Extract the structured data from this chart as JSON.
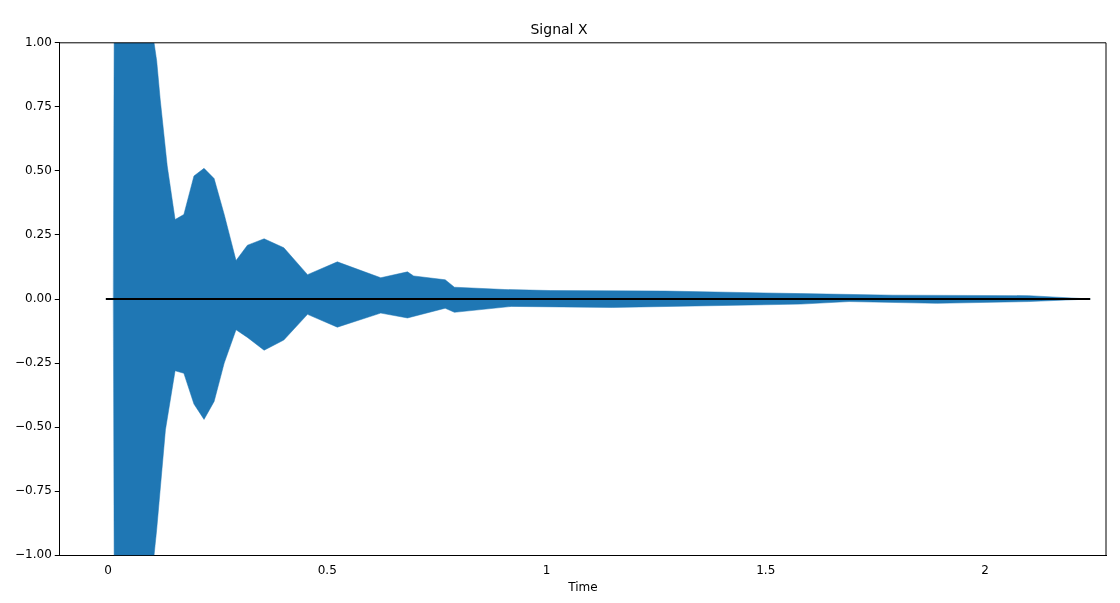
{
  "chart_data": {
    "type": "area",
    "title": "Signal X",
    "xlabel": "Time",
    "xlim": [
      -0.11,
      2.276
    ],
    "xticks": [
      0,
      0.5,
      1,
      1.5,
      2
    ],
    "ylim": [
      -1,
      1
    ],
    "yticks": [
      {
        "value": -1,
        "label": "−1.00"
      },
      {
        "value": -0.75,
        "label": "−0.75"
      },
      {
        "value": -0.5,
        "label": "−0.50"
      },
      {
        "value": -0.25,
        "label": "−0.25"
      },
      {
        "value": 0,
        "label": "0.00"
      },
      {
        "value": 0.25,
        "label": "0.25"
      },
      {
        "value": 0.5,
        "label": "0.50"
      },
      {
        "value": 0.75,
        "label": "0.75"
      },
      {
        "value": 1,
        "label": "1.00"
      }
    ],
    "grid": false,
    "legend": false,
    "series": [
      {
        "color": "#1f77b4",
        "x": [
          0.012,
          0.014,
          0.105,
          0.111,
          0.119,
          0.135,
          0.153,
          0.173,
          0.196,
          0.219,
          0.242,
          0.265,
          0.292,
          0.318,
          0.356,
          0.401,
          0.455,
          0.523,
          0.585,
          0.622,
          0.683,
          0.697,
          0.769,
          0.79,
          0.905,
          1.01,
          1.27,
          1.58,
          1.79,
          2.1,
          2.24
        ],
        "values": [
          0,
          1,
          1,
          0.93,
          0.78,
          0.52,
          0.31,
          0.33,
          0.48,
          0.51,
          0.47,
          0.33,
          0.15,
          0.21,
          0.235,
          0.2,
          0.095,
          0.145,
          0.106,
          0.083,
          0.106,
          0.09,
          0.075,
          0.046,
          0.037,
          0.033,
          0.031,
          0.021,
          0.015,
          0.013,
          0
        ]
      },
      {
        "color": "#1f77b4",
        "x": [
          0.012,
          0.014,
          0.105,
          0.111,
          0.131,
          0.153,
          0.173,
          0.196,
          0.219,
          0.242,
          0.265,
          0.292,
          0.318,
          0.356,
          0.401,
          0.455,
          0.523,
          0.622,
          0.683,
          0.769,
          0.79,
          0.92,
          1.15,
          1.58,
          1.69,
          1.89,
          2.1,
          2.24
        ],
        "values": [
          0,
          -1,
          -1,
          -0.9,
          -0.51,
          -0.28,
          -0.29,
          -0.41,
          -0.47,
          -0.4,
          -0.25,
          -0.12,
          -0.15,
          -0.2,
          -0.16,
          -0.06,
          -0.11,
          -0.055,
          -0.074,
          -0.036,
          -0.052,
          -0.029,
          -0.033,
          -0.02,
          -0.01,
          -0.017,
          -0.01,
          0
        ]
      },
      {
        "type": "line",
        "color": "#000000",
        "x": [
          -0.005,
          2.24
        ],
        "values": [
          0,
          0
        ]
      }
    ]
  }
}
